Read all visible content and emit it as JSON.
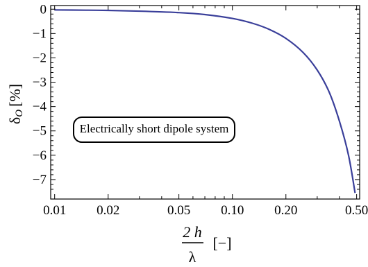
{
  "chart_data": {
    "type": "line",
    "title": "",
    "x_scale": "log",
    "xlim": [
      0.0095,
      0.52
    ],
    "ylim": [
      -7.8,
      0.15
    ],
    "x_ticks": [
      0.01,
      0.02,
      0.05,
      0.1,
      0.2,
      0.5
    ],
    "x_tick_labels": [
      "0.01",
      "0.02",
      "0.05",
      "0.10",
      "0.20",
      "0.50"
    ],
    "y_ticks": [
      0,
      -1,
      -2,
      -3,
      -4,
      -5,
      -6,
      -7
    ],
    "y_tick_labels": [
      "0",
      "−1",
      "−2",
      "−3",
      "−4",
      "−5",
      "−6",
      "−7"
    ],
    "xlabel": {
      "fraction_numerator": "2 h",
      "fraction_denominator": "λ",
      "unit": "[−]"
    },
    "ylabel": {
      "symbol": "δ",
      "subscript": "O",
      "unit": "[%]"
    },
    "annotation": "Electrically short dipole system",
    "grid": false,
    "line_color": "#3a3f9a",
    "series": [
      {
        "x": [
          0.01,
          0.015,
          0.02,
          0.03,
          0.05,
          0.07,
          0.1,
          0.13,
          0.16,
          0.2,
          0.25,
          0.3,
          0.35,
          0.4,
          0.45,
          0.49
        ],
        "values": [
          -0.03,
          -0.04,
          -0.05,
          -0.08,
          -0.14,
          -0.22,
          -0.38,
          -0.58,
          -0.82,
          -1.2,
          -1.78,
          -2.5,
          -3.4,
          -4.6,
          -6.0,
          -7.55
        ]
      }
    ]
  }
}
